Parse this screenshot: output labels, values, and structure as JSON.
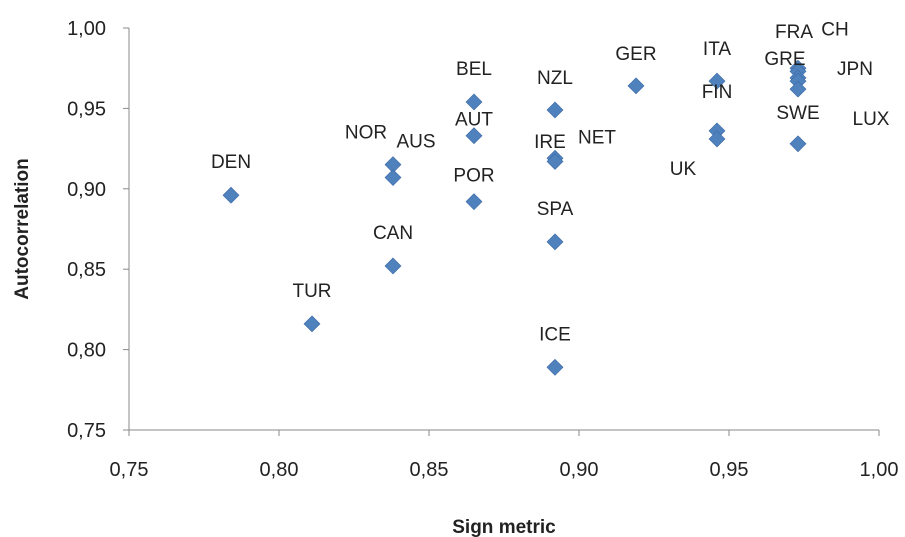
{
  "chart_data": {
    "type": "scatter",
    "title": "",
    "xlabel": "Sign metric",
    "ylabel": "Autocorrelation",
    "xlim": [
      0.75,
      1.0
    ],
    "ylim": [
      0.75,
      1.0
    ],
    "x_ticks": [
      "0,75",
      "0,80",
      "0,85",
      "0,90",
      "0,95",
      "1,00"
    ],
    "y_ticks": [
      "0,75",
      "0,80",
      "0,85",
      "0,90",
      "0,95",
      "1,00"
    ],
    "grid": false,
    "legend": "none",
    "marker": "diamond",
    "marker_color": "#4f81bd",
    "points": [
      {
        "label": "DEN",
        "x": 0.784,
        "y": 0.896
      },
      {
        "label": "TUR",
        "x": 0.811,
        "y": 0.816
      },
      {
        "label": "NOR",
        "x": 0.838,
        "y": 0.915
      },
      {
        "label": "AUS",
        "x": 0.838,
        "y": 0.907
      },
      {
        "label": "CAN",
        "x": 0.838,
        "y": 0.852
      },
      {
        "label": "BEL",
        "x": 0.865,
        "y": 0.954
      },
      {
        "label": "AUT",
        "x": 0.865,
        "y": 0.933
      },
      {
        "label": "POR",
        "x": 0.865,
        "y": 0.892
      },
      {
        "label": "NZL",
        "x": 0.892,
        "y": 0.949
      },
      {
        "label": "IRE",
        "x": 0.892,
        "y": 0.919
      },
      {
        "label": "NET",
        "x": 0.892,
        "y": 0.917
      },
      {
        "label": "SPA",
        "x": 0.892,
        "y": 0.867
      },
      {
        "label": "ICE",
        "x": 0.892,
        "y": 0.789
      },
      {
        "label": "GER",
        "x": 0.919,
        "y": 0.964
      },
      {
        "label": "ITA",
        "x": 0.946,
        "y": 0.967
      },
      {
        "label": "FIN",
        "x": 0.946,
        "y": 0.936
      },
      {
        "label": "UK",
        "x": 0.946,
        "y": 0.931
      },
      {
        "label": "FRA",
        "x": 0.973,
        "y": 0.975
      },
      {
        "label": "CH",
        "x": 0.973,
        "y": 0.973
      },
      {
        "label": "GRE",
        "x": 0.973,
        "y": 0.969
      },
      {
        "label": "JPN",
        "x": 0.973,
        "y": 0.967
      },
      {
        "label": "LUX",
        "x": 0.973,
        "y": 0.962
      },
      {
        "label": "SWE",
        "x": 0.973,
        "y": 0.928
      }
    ]
  }
}
